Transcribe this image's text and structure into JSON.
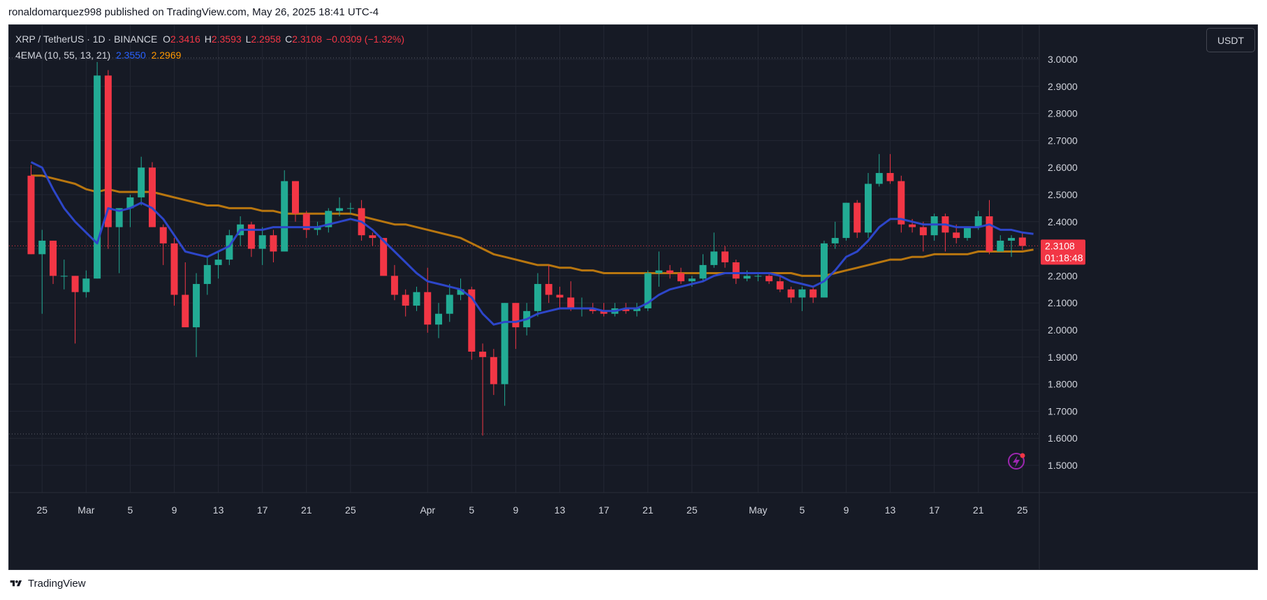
{
  "publisher_line": "ronaldomarquez998 published on TradingView.com, May 26, 2025 18:41 UTC-4",
  "legend": {
    "symbol": "XRP / TetherUS · 1D · BINANCE",
    "o_label": "O",
    "o": "2.3416",
    "h_label": "H",
    "h": "2.3593",
    "l_label": "L",
    "l": "2.2958",
    "c_label": "C",
    "c": "2.3108",
    "change": "−0.0309 (−1.32%)",
    "indicator": "4EMA (10, 55, 13, 21)",
    "ema_fast": "2.3550",
    "ema_slow": "2.2969"
  },
  "currency_button": "USDT",
  "price_badge": {
    "price": "2.3108",
    "countdown": "01:18:48"
  },
  "brand": "TradingView",
  "colors": {
    "up": "#22ab94",
    "down": "#f23645",
    "ema_fast": "#2962ff",
    "ema_slow": "#ff9800",
    "bg": "#161a25",
    "grid": "#232733",
    "text": "#d1d4dc"
  },
  "chart_data": {
    "type": "candlestick",
    "ylim": [
      1.5,
      3.0
    ],
    "y_ticks": [
      "3.0000",
      "2.9000",
      "2.8000",
      "2.7000",
      "2.6000",
      "2.5000",
      "2.4000",
      "2.3000",
      "2.2000",
      "2.1000",
      "2.0000",
      "1.9000",
      "1.8000",
      "1.7000",
      "1.6000",
      "1.5000"
    ],
    "x_tick_labels": [
      {
        "label": "25",
        "i": 1
      },
      {
        "label": "Mar",
        "i": 5
      },
      {
        "label": "5",
        "i": 9
      },
      {
        "label": "9",
        "i": 13
      },
      {
        "label": "13",
        "i": 17
      },
      {
        "label": "17",
        "i": 21
      },
      {
        "label": "21",
        "i": 25
      },
      {
        "label": "25",
        "i": 29
      },
      {
        "label": "Apr",
        "i": 36
      },
      {
        "label": "5",
        "i": 40
      },
      {
        "label": "9",
        "i": 44
      },
      {
        "label": "13",
        "i": 48
      },
      {
        "label": "17",
        "i": 52
      },
      {
        "label": "21",
        "i": 56
      },
      {
        "label": "25",
        "i": 60
      },
      {
        "label": "May",
        "i": 66
      },
      {
        "label": "5",
        "i": 70
      },
      {
        "label": "9",
        "i": 74
      },
      {
        "label": "13",
        "i": 78
      },
      {
        "label": "17",
        "i": 82
      },
      {
        "label": "21",
        "i": 86
      },
      {
        "label": "25",
        "i": 90
      }
    ],
    "candles": [
      {
        "o": 2.57,
        "h": 2.61,
        "l": 2.28,
        "c": 2.28
      },
      {
        "o": 2.28,
        "h": 2.37,
        "l": 2.06,
        "c": 2.33
      },
      {
        "o": 2.33,
        "h": 2.33,
        "l": 2.17,
        "c": 2.2
      },
      {
        "o": 2.2,
        "h": 2.26,
        "l": 2.15,
        "c": 2.2
      },
      {
        "o": 2.2,
        "h": 2.2,
        "l": 1.95,
        "c": 2.14
      },
      {
        "o": 2.14,
        "h": 2.22,
        "l": 2.12,
        "c": 2.19
      },
      {
        "o": 2.19,
        "h": 2.99,
        "l": 2.19,
        "c": 2.94
      },
      {
        "o": 2.94,
        "h": 2.96,
        "l": 2.3,
        "c": 2.38
      },
      {
        "o": 2.38,
        "h": 2.45,
        "l": 2.21,
        "c": 2.45
      },
      {
        "o": 2.45,
        "h": 2.5,
        "l": 2.38,
        "c": 2.49
      },
      {
        "o": 2.49,
        "h": 2.64,
        "l": 2.46,
        "c": 2.6
      },
      {
        "o": 2.6,
        "h": 2.62,
        "l": 2.38,
        "c": 2.38
      },
      {
        "o": 2.38,
        "h": 2.39,
        "l": 2.24,
        "c": 2.32
      },
      {
        "o": 2.32,
        "h": 2.34,
        "l": 2.09,
        "c": 2.13
      },
      {
        "o": 2.13,
        "h": 2.25,
        "l": 2.02,
        "c": 2.01
      },
      {
        "o": 2.01,
        "h": 2.21,
        "l": 1.9,
        "c": 2.17
      },
      {
        "o": 2.17,
        "h": 2.27,
        "l": 2.13,
        "c": 2.24
      },
      {
        "o": 2.24,
        "h": 2.29,
        "l": 2.19,
        "c": 2.26
      },
      {
        "o": 2.26,
        "h": 2.37,
        "l": 2.24,
        "c": 2.35
      },
      {
        "o": 2.35,
        "h": 2.42,
        "l": 2.31,
        "c": 2.39
      },
      {
        "o": 2.39,
        "h": 2.4,
        "l": 2.27,
        "c": 2.3
      },
      {
        "o": 2.3,
        "h": 2.38,
        "l": 2.24,
        "c": 2.35
      },
      {
        "o": 2.35,
        "h": 2.37,
        "l": 2.25,
        "c": 2.29
      },
      {
        "o": 2.29,
        "h": 2.59,
        "l": 2.29,
        "c": 2.55
      },
      {
        "o": 2.55,
        "h": 2.55,
        "l": 2.4,
        "c": 2.43
      },
      {
        "o": 2.43,
        "h": 2.44,
        "l": 2.34,
        "c": 2.37
      },
      {
        "o": 2.37,
        "h": 2.4,
        "l": 2.35,
        "c": 2.38
      },
      {
        "o": 2.38,
        "h": 2.45,
        "l": 2.36,
        "c": 2.44
      },
      {
        "o": 2.44,
        "h": 2.49,
        "l": 2.42,
        "c": 2.45
      },
      {
        "o": 2.45,
        "h": 2.47,
        "l": 2.43,
        "c": 2.45
      },
      {
        "o": 2.45,
        "h": 2.48,
        "l": 2.33,
        "c": 2.35
      },
      {
        "o": 2.35,
        "h": 2.36,
        "l": 2.31,
        "c": 2.34
      },
      {
        "o": 2.34,
        "h": 2.34,
        "l": 2.2,
        "c": 2.2
      },
      {
        "o": 2.2,
        "h": 2.24,
        "l": 2.11,
        "c": 2.13
      },
      {
        "o": 2.13,
        "h": 2.15,
        "l": 2.05,
        "c": 2.09
      },
      {
        "o": 2.09,
        "h": 2.16,
        "l": 2.07,
        "c": 2.14
      },
      {
        "o": 2.14,
        "h": 2.23,
        "l": 1.99,
        "c": 2.02
      },
      {
        "o": 2.02,
        "h": 2.1,
        "l": 1.97,
        "c": 2.06
      },
      {
        "o": 2.06,
        "h": 2.17,
        "l": 2.03,
        "c": 2.13
      },
      {
        "o": 2.13,
        "h": 2.19,
        "l": 2.11,
        "c": 2.15
      },
      {
        "o": 2.15,
        "h": 2.16,
        "l": 1.89,
        "c": 1.92
      },
      {
        "o": 1.92,
        "h": 1.95,
        "l": 1.61,
        "c": 1.9
      },
      {
        "o": 1.9,
        "h": 1.93,
        "l": 1.76,
        "c": 1.8
      },
      {
        "o": 1.8,
        "h": 2.1,
        "l": 1.72,
        "c": 2.1
      },
      {
        "o": 2.1,
        "h": 2.1,
        "l": 1.93,
        "c": 2.01
      },
      {
        "o": 2.01,
        "h": 2.1,
        "l": 1.98,
        "c": 2.07
      },
      {
        "o": 2.07,
        "h": 2.21,
        "l": 2.05,
        "c": 2.17
      },
      {
        "o": 2.17,
        "h": 2.24,
        "l": 2.1,
        "c": 2.13
      },
      {
        "o": 2.13,
        "h": 2.16,
        "l": 2.08,
        "c": 2.12
      },
      {
        "o": 2.12,
        "h": 2.18,
        "l": 2.07,
        "c": 2.08
      },
      {
        "o": 2.08,
        "h": 2.12,
        "l": 2.05,
        "c": 2.08
      },
      {
        "o": 2.08,
        "h": 2.1,
        "l": 2.06,
        "c": 2.07
      },
      {
        "o": 2.07,
        "h": 2.1,
        "l": 2.05,
        "c": 2.06
      },
      {
        "o": 2.06,
        "h": 2.1,
        "l": 2.05,
        "c": 2.08
      },
      {
        "o": 2.08,
        "h": 2.1,
        "l": 2.06,
        "c": 2.07
      },
      {
        "o": 2.07,
        "h": 2.1,
        "l": 2.05,
        "c": 2.08
      },
      {
        "o": 2.08,
        "h": 2.22,
        "l": 2.07,
        "c": 2.21
      },
      {
        "o": 2.21,
        "h": 2.29,
        "l": 2.16,
        "c": 2.22
      },
      {
        "o": 2.22,
        "h": 2.24,
        "l": 2.19,
        "c": 2.21
      },
      {
        "o": 2.21,
        "h": 2.23,
        "l": 2.17,
        "c": 2.18
      },
      {
        "o": 2.18,
        "h": 2.2,
        "l": 2.16,
        "c": 2.19
      },
      {
        "o": 2.19,
        "h": 2.28,
        "l": 2.18,
        "c": 2.24
      },
      {
        "o": 2.24,
        "h": 2.36,
        "l": 2.23,
        "c": 2.29
      },
      {
        "o": 2.29,
        "h": 2.31,
        "l": 2.23,
        "c": 2.25
      },
      {
        "o": 2.25,
        "h": 2.26,
        "l": 2.17,
        "c": 2.19
      },
      {
        "o": 2.19,
        "h": 2.22,
        "l": 2.18,
        "c": 2.2
      },
      {
        "o": 2.2,
        "h": 2.21,
        "l": 2.18,
        "c": 2.2
      },
      {
        "o": 2.2,
        "h": 2.21,
        "l": 2.17,
        "c": 2.18
      },
      {
        "o": 2.18,
        "h": 2.2,
        "l": 2.14,
        "c": 2.15
      },
      {
        "o": 2.15,
        "h": 2.16,
        "l": 2.1,
        "c": 2.12
      },
      {
        "o": 2.12,
        "h": 2.16,
        "l": 2.07,
        "c": 2.15
      },
      {
        "o": 2.15,
        "h": 2.16,
        "l": 2.1,
        "c": 2.12
      },
      {
        "o": 2.12,
        "h": 2.33,
        "l": 2.12,
        "c": 2.32
      },
      {
        "o": 2.32,
        "h": 2.4,
        "l": 2.3,
        "c": 2.34
      },
      {
        "o": 2.34,
        "h": 2.47,
        "l": 2.33,
        "c": 2.47
      },
      {
        "o": 2.47,
        "h": 2.48,
        "l": 2.34,
        "c": 2.36
      },
      {
        "o": 2.36,
        "h": 2.58,
        "l": 2.34,
        "c": 2.54
      },
      {
        "o": 2.54,
        "h": 2.65,
        "l": 2.53,
        "c": 2.58
      },
      {
        "o": 2.58,
        "h": 2.65,
        "l": 2.54,
        "c": 2.55
      },
      {
        "o": 2.55,
        "h": 2.57,
        "l": 2.36,
        "c": 2.39
      },
      {
        "o": 2.39,
        "h": 2.41,
        "l": 2.36,
        "c": 2.38
      },
      {
        "o": 2.38,
        "h": 2.4,
        "l": 2.29,
        "c": 2.35
      },
      {
        "o": 2.35,
        "h": 2.43,
        "l": 2.33,
        "c": 2.42
      },
      {
        "o": 2.42,
        "h": 2.43,
        "l": 2.29,
        "c": 2.36
      },
      {
        "o": 2.36,
        "h": 2.39,
        "l": 2.32,
        "c": 2.34
      },
      {
        "o": 2.34,
        "h": 2.38,
        "l": 2.33,
        "c": 2.38
      },
      {
        "o": 2.38,
        "h": 2.44,
        "l": 2.37,
        "c": 2.42
      },
      {
        "o": 2.42,
        "h": 2.48,
        "l": 2.28,
        "c": 2.29
      },
      {
        "o": 2.29,
        "h": 2.35,
        "l": 2.29,
        "c": 2.33
      },
      {
        "o": 2.33,
        "h": 2.35,
        "l": 2.27,
        "c": 2.34
      },
      {
        "o": 2.3416,
        "h": 2.3593,
        "l": 2.2958,
        "c": 2.3108
      }
    ],
    "ema_fast": [
      2.62,
      2.6,
      2.52,
      2.45,
      2.4,
      2.36,
      2.32,
      2.45,
      2.44,
      2.45,
      2.47,
      2.45,
      2.41,
      2.35,
      2.29,
      2.28,
      2.27,
      2.29,
      2.31,
      2.37,
      2.37,
      2.37,
      2.38,
      2.38,
      2.38,
      2.38,
      2.38,
      2.39,
      2.4,
      2.41,
      2.4,
      2.37,
      2.33,
      2.29,
      2.25,
      2.21,
      2.18,
      2.17,
      2.16,
      2.15,
      2.12,
      2.06,
      2.02,
      2.03,
      2.03,
      2.04,
      2.06,
      2.07,
      2.08,
      2.08,
      2.08,
      2.08,
      2.07,
      2.07,
      2.08,
      2.08,
      2.1,
      2.13,
      2.15,
      2.16,
      2.17,
      2.18,
      2.2,
      2.21,
      2.21,
      2.21,
      2.21,
      2.21,
      2.2,
      2.18,
      2.17,
      2.16,
      2.18,
      2.22,
      2.27,
      2.29,
      2.33,
      2.38,
      2.41,
      2.41,
      2.4,
      2.39,
      2.39,
      2.39,
      2.38,
      2.38,
      2.38,
      2.39,
      2.37,
      2.37,
      2.36,
      2.355
    ],
    "ema_slow": [
      2.57,
      2.57,
      2.56,
      2.55,
      2.54,
      2.52,
      2.51,
      2.52,
      2.51,
      2.51,
      2.51,
      2.51,
      2.5,
      2.49,
      2.48,
      2.47,
      2.46,
      2.46,
      2.45,
      2.45,
      2.45,
      2.44,
      2.44,
      2.43,
      2.43,
      2.43,
      2.43,
      2.43,
      2.43,
      2.43,
      2.42,
      2.41,
      2.4,
      2.39,
      2.39,
      2.38,
      2.37,
      2.36,
      2.35,
      2.34,
      2.32,
      2.3,
      2.28,
      2.27,
      2.26,
      2.25,
      2.24,
      2.24,
      2.23,
      2.23,
      2.22,
      2.22,
      2.21,
      2.21,
      2.21,
      2.21,
      2.21,
      2.21,
      2.21,
      2.21,
      2.21,
      2.21,
      2.21,
      2.21,
      2.21,
      2.21,
      2.21,
      2.21,
      2.21,
      2.21,
      2.2,
      2.2,
      2.2,
      2.21,
      2.22,
      2.23,
      2.24,
      2.25,
      2.26,
      2.26,
      2.27,
      2.27,
      2.28,
      2.28,
      2.28,
      2.28,
      2.29,
      2.29,
      2.29,
      2.29,
      2.29,
      2.2969
    ]
  }
}
